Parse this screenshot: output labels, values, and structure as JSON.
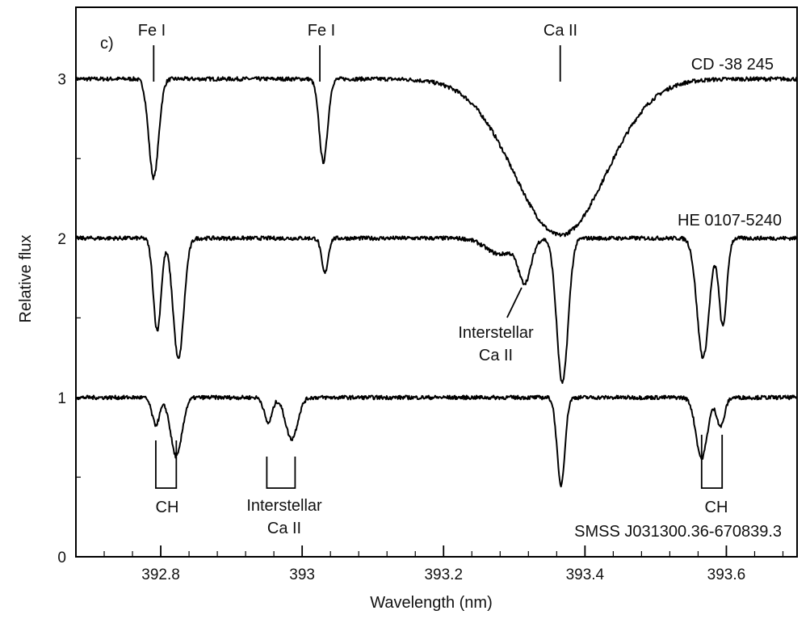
{
  "chart_data": {
    "type": "line",
    "panel_label": "c)",
    "xlabel": "Wavelength (nm)",
    "ylabel": "Relative flux",
    "xlim": [
      392.68,
      393.7
    ],
    "ylim": [
      0,
      3.45
    ],
    "x_ticks": [
      392.8,
      393.0,
      393.2,
      393.4,
      393.6
    ],
    "x_tick_labels": [
      "392.8",
      "393",
      "393.2",
      "393.4",
      "393.6"
    ],
    "x_minor_step": 0.04,
    "y_ticks": [
      0,
      1,
      2,
      3
    ],
    "y_tick_labels": [
      "0",
      "1",
      "2",
      "3"
    ],
    "grid": false,
    "series": [
      {
        "name": "CD -38 245",
        "baseline": 3.0,
        "lines": [
          {
            "center": 392.79,
            "depth": 0.62,
            "width": 0.007
          },
          {
            "center": 393.03,
            "depth": 0.52,
            "width": 0.006
          },
          {
            "center": 393.365,
            "depth": 0.98,
            "width": 0.065
          }
        ]
      },
      {
        "name": "HE 0107-5240",
        "baseline": 2.0,
        "lines": [
          {
            "center": 392.795,
            "depth": 0.58,
            "width": 0.0055
          },
          {
            "center": 392.825,
            "depth": 0.76,
            "width": 0.0075
          },
          {
            "center": 393.032,
            "depth": 0.22,
            "width": 0.0045
          },
          {
            "center": 393.28,
            "depth": 0.1,
            "width": 0.02
          },
          {
            "center": 393.315,
            "depth": 0.26,
            "width": 0.009
          },
          {
            "center": 393.368,
            "depth": 0.91,
            "width": 0.008
          },
          {
            "center": 393.567,
            "depth": 0.75,
            "width": 0.0085
          },
          {
            "center": 393.595,
            "depth": 0.55,
            "width": 0.0055
          }
        ]
      },
      {
        "name": "SMSS J031300.36-670839.3",
        "baseline": 1.0,
        "lines": [
          {
            "center": 392.793,
            "depth": 0.17,
            "width": 0.0055
          },
          {
            "center": 392.822,
            "depth": 0.37,
            "width": 0.008
          },
          {
            "center": 392.952,
            "depth": 0.16,
            "width": 0.0055
          },
          {
            "center": 392.985,
            "depth": 0.26,
            "width": 0.0085
          },
          {
            "center": 393.366,
            "depth": 0.55,
            "width": 0.0055
          },
          {
            "center": 393.565,
            "depth": 0.38,
            "width": 0.008
          },
          {
            "center": 393.592,
            "depth": 0.18,
            "width": 0.0055
          }
        ]
      }
    ],
    "annotations": {
      "line_ids": [
        {
          "text": "Fe I",
          "x": 392.79
        },
        {
          "text": "Fe I",
          "x": 393.025
        },
        {
          "text": "Ca II",
          "x": 393.365
        }
      ],
      "interstellar_mid": {
        "line1": "Interstellar",
        "line2": "Ca II",
        "x": 393.315,
        "y": 1.73
      },
      "interstellar_low": {
        "line1": "Interstellar",
        "line2": "Ca II",
        "x1": 392.95,
        "x2": 392.99
      },
      "ch_left": {
        "text": "CH",
        "x1": 392.793,
        "x2": 392.822
      },
      "ch_right": {
        "text": "CH",
        "x1": 393.565,
        "x2": 393.594
      }
    }
  }
}
